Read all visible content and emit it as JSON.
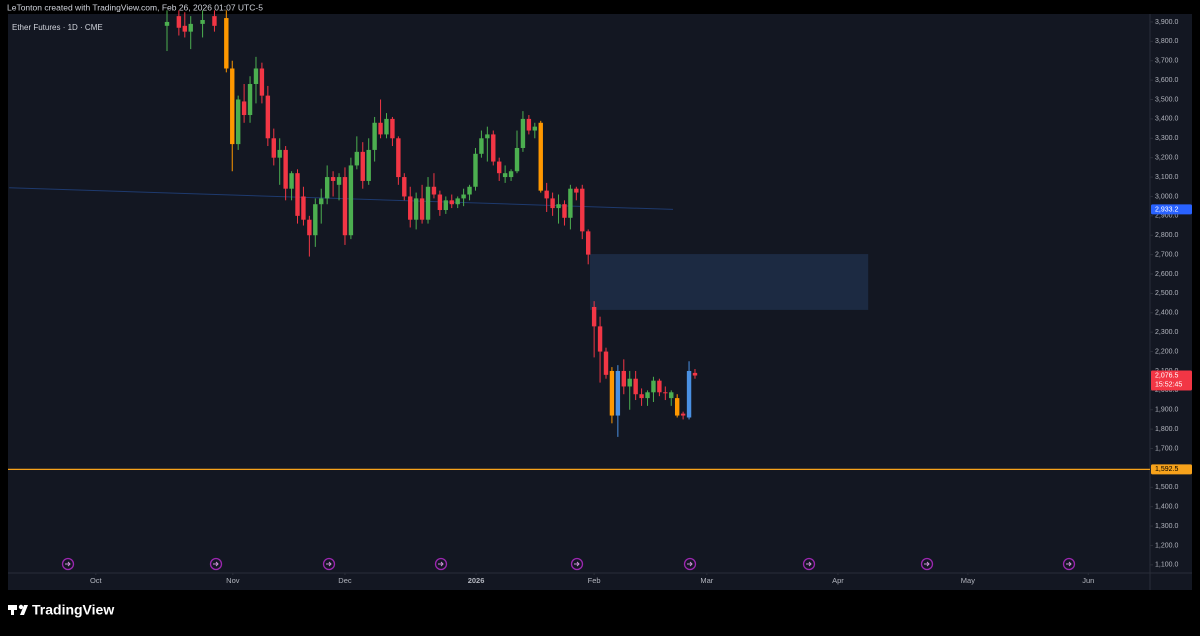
{
  "chart_data": {
    "type": "candlestick",
    "header": "LeTonton created with TradingView.com, Feb 26, 2026 01:07 UTC-5",
    "legend": "Ether Futures · 1D · CME",
    "brand": "TradingView",
    "xlim": [
      -14.8,
      177.7
    ],
    "ylim": [
      1058,
      3941
    ],
    "xticks": [
      {
        "value": 0,
        "label": "Oct"
      },
      {
        "value": 23.1,
        "label": "Nov"
      },
      {
        "value": 42,
        "label": "Dec"
      },
      {
        "value": 64.1,
        "label": "2026"
      },
      {
        "value": 84,
        "label": "Feb"
      },
      {
        "value": 103,
        "label": "Mar"
      },
      {
        "value": 125.1,
        "label": "Apr"
      },
      {
        "value": 147,
        "label": "May"
      },
      {
        "value": 167.3,
        "label": "Jun"
      }
    ],
    "yticks": [
      {
        "value": 1100,
        "label": "1,100.0"
      },
      {
        "value": 1200,
        "label": "1,200.0"
      },
      {
        "value": 1300,
        "label": "1,300.0"
      },
      {
        "value": 1400,
        "label": "1,400.0"
      },
      {
        "value": 1500,
        "label": "1,500.0"
      },
      {
        "value": 1600,
        "label": "1,600.0"
      },
      {
        "value": 1700,
        "label": "1,700.0"
      },
      {
        "value": 1800,
        "label": "1,800.0"
      },
      {
        "value": 1900,
        "label": "1,900.0"
      },
      {
        "value": 2000,
        "label": "2,000.0"
      },
      {
        "value": 2100,
        "label": "2,100.0"
      },
      {
        "value": 2200,
        "label": "2,200.0"
      },
      {
        "value": 2300,
        "label": "2,300.0"
      },
      {
        "value": 2400,
        "label": "2,400.0"
      },
      {
        "value": 2500,
        "label": "2,500.0"
      },
      {
        "value": 2600,
        "label": "2,600.0"
      },
      {
        "value": 2700,
        "label": "2,700.0"
      },
      {
        "value": 2800,
        "label": "2,800.0"
      },
      {
        "value": 2900,
        "label": "2,900.0"
      },
      {
        "value": 3000,
        "label": "3,000.0"
      },
      {
        "value": 3100,
        "label": "3,100.0"
      },
      {
        "value": 3200,
        "label": "3,200.0"
      },
      {
        "value": 3300,
        "label": "3,300.0"
      },
      {
        "value": 3400,
        "label": "3,400.0"
      },
      {
        "value": 3500,
        "label": "3,500.0"
      },
      {
        "value": 3600,
        "label": "3,600.0"
      },
      {
        "value": 3700,
        "label": "3,700.0"
      },
      {
        "value": 3800,
        "label": "3,800.0"
      },
      {
        "value": 3900,
        "label": "3,900.0"
      }
    ],
    "x": [
      12,
      14,
      15,
      16,
      18,
      20,
      22,
      23,
      24,
      25,
      26,
      27,
      28,
      29,
      30,
      31,
      32,
      33,
      34,
      35,
      36,
      37,
      38,
      39,
      40,
      41,
      42,
      43,
      44,
      45,
      46,
      47,
      48,
      49,
      50,
      51,
      52,
      53,
      54,
      55,
      56,
      57,
      58,
      59,
      60,
      61,
      62,
      63,
      64,
      65,
      66,
      67,
      68,
      69,
      70,
      71,
      72,
      73,
      74,
      75,
      76,
      77,
      78,
      79,
      80,
      81,
      82,
      83,
      84,
      85,
      86,
      87,
      88,
      89,
      90,
      91,
      92,
      93,
      94,
      95,
      96,
      97,
      98,
      99,
      100,
      101
    ],
    "open": [
      3880,
      3930,
      3880,
      3850,
      3890,
      3930,
      3920,
      3660,
      3270,
      3490,
      3420,
      3580,
      3660,
      3520,
      3300,
      3200,
      3240,
      3040,
      3120,
      3000,
      2880,
      2800,
      2960,
      2990,
      3100,
      3060,
      3100,
      2800,
      3160,
      3230,
      3080,
      3240,
      3380,
      3320,
      3400,
      3300,
      3100,
      3000,
      2880,
      2990,
      2880,
      3050,
      3010,
      2930,
      2980,
      2960,
      2990,
      3010,
      3050,
      3220,
      3300,
      3320,
      3180,
      3120,
      3100,
      3130,
      3250,
      3400,
      3340,
      3380,
      3030,
      2990,
      2940,
      2960,
      2890,
      3040,
      3040,
      2820,
      2430,
      2330,
      2200,
      2100,
      1870,
      2100,
      2020,
      2060,
      1980,
      1960,
      1990,
      2050,
      1990,
      1960,
      1960,
      1870,
      1860,
      2090
    ],
    "high": [
      3960,
      3960,
      3950,
      3930,
      3960,
      3960,
      3960,
      3700,
      3520,
      3580,
      3620,
      3720,
      3690,
      3570,
      3350,
      3300,
      3260,
      3130,
      3140,
      3050,
      2900,
      2990,
      3040,
      3160,
      3130,
      3120,
      3150,
      3200,
      3310,
      3280,
      3300,
      3410,
      3500,
      3430,
      3410,
      3310,
      3120,
      3050,
      3020,
      3060,
      3100,
      3120,
      3030,
      3000,
      3010,
      3000,
      3040,
      3060,
      3250,
      3340,
      3360,
      3340,
      3200,
      3160,
      3140,
      3340,
      3440,
      3420,
      3380,
      3390,
      3070,
      3020,
      3010,
      2980,
      3060,
      3050,
      3060,
      2830,
      2460,
      2380,
      2220,
      2120,
      2130,
      2160,
      2100,
      2100,
      2010,
      2000,
      2070,
      2060,
      2020,
      2000,
      1980,
      1890,
      2150,
      2110
    ],
    "low": [
      3750,
      3830,
      3820,
      3760,
      3820,
      3850,
      3640,
      3130,
      3240,
      3380,
      3380,
      3480,
      3480,
      3260,
      3160,
      3060,
      2980,
      2980,
      2860,
      2850,
      2690,
      2740,
      2860,
      2960,
      3000,
      2980,
      2750,
      2780,
      3140,
      3040,
      3060,
      3180,
      3300,
      3300,
      3260,
      3060,
      2980,
      2840,
      2830,
      2860,
      2860,
      2990,
      2900,
      2910,
      2940,
      2940,
      2950,
      2980,
      3030,
      3200,
      3180,
      3160,
      3080,
      3070,
      3080,
      3120,
      3230,
      3320,
      3300,
      3020,
      2920,
      2900,
      2860,
      2850,
      2830,
      2980,
      2780,
      2650,
      2170,
      2040,
      2060,
      1830,
      1760,
      1980,
      1900,
      1950,
      1920,
      1920,
      1940,
      1970,
      1950,
      1920,
      1860,
      1850,
      1850,
      2060
    ],
    "close": [
      3900,
      3870,
      3850,
      3890,
      3910,
      3880,
      3660,
      3270,
      3500,
      3420,
      3580,
      3660,
      3520,
      3300,
      3200,
      3240,
      3040,
      3120,
      2900,
      2880,
      2800,
      2960,
      2990,
      3100,
      3080,
      3100,
      2800,
      3160,
      3230,
      3080,
      3240,
      3380,
      3320,
      3400,
      3300,
      3100,
      3000,
      2880,
      2990,
      2880,
      3050,
      3010,
      2930,
      2980,
      2960,
      2990,
      3010,
      3050,
      3220,
      3300,
      3320,
      3180,
      3120,
      3100,
      3130,
      3250,
      3400,
      3340,
      3360,
      3030,
      2990,
      2940,
      2960,
      2890,
      3040,
      3020,
      2820,
      2700,
      2330,
      2200,
      2080,
      1870,
      2100,
      2020,
      2060,
      1980,
      1960,
      1990,
      2050,
      1990,
      1990,
      1990,
      1870,
      1880,
      2100,
      2076.5
    ],
    "colors": [
      "#4caf50",
      "#f23645",
      "#f23645",
      "#4caf50",
      "#4caf50",
      "#f23645",
      "#ff9800",
      "#ff9800",
      "#4caf50",
      "#f23645",
      "#4caf50",
      "#4caf50",
      "#f23645",
      "#f23645",
      "#f23645",
      "#4caf50",
      "#f23645",
      "#4caf50",
      "#f23645",
      "#f23645",
      "#f23645",
      "#4caf50",
      "#4caf50",
      "#4caf50",
      "#f23645",
      "#4caf50",
      "#f23645",
      "#4caf50",
      "#4caf50",
      "#f23645",
      "#4caf50",
      "#4caf50",
      "#f23645",
      "#4caf50",
      "#f23645",
      "#f23645",
      "#f23645",
      "#f23645",
      "#4caf50",
      "#f23645",
      "#4caf50",
      "#f23645",
      "#f23645",
      "#4caf50",
      "#f23645",
      "#4caf50",
      "#4caf50",
      "#4caf50",
      "#4caf50",
      "#4caf50",
      "#4caf50",
      "#f23645",
      "#f23645",
      "#4caf50",
      "#4caf50",
      "#4caf50",
      "#4caf50",
      "#f23645",
      "#4caf50",
      "#ff9800",
      "#f23645",
      "#f23645",
      "#4caf50",
      "#f23645",
      "#4caf50",
      "#f23645",
      "#f23645",
      "#f23645",
      "#f23645",
      "#f23645",
      "#f23645",
      "#ff9800",
      "#4a90e2",
      "#f23645",
      "#4caf50",
      "#f23645",
      "#f23645",
      "#4caf50",
      "#4caf50",
      "#f23645",
      "#f23645",
      "#4caf50",
      "#ff9800",
      "#f23645",
      "#4a90e2",
      "#f23645"
    ],
    "moving_average": {
      "x": [
        -14.6,
        97.3
      ],
      "values": [
        3045,
        2933.2
      ],
      "color": "#1e3a6e",
      "label": {
        "value": 2933.2,
        "label": "2,933.2"
      },
      "label_color": "#2962ff"
    },
    "horizontal_line": {
      "value": 1592.5,
      "label": "1,592.5",
      "color": "#f7a21b"
    },
    "zone": {
      "x": [
        83.3,
        130.2
      ],
      "ylim": [
        2415,
        2703
      ],
      "color": "#1c2a42"
    },
    "last_price": {
      "value": 2076.5,
      "label": "2,076.5",
      "countdown": "15:52:45",
      "color": "#f23645"
    }
  }
}
